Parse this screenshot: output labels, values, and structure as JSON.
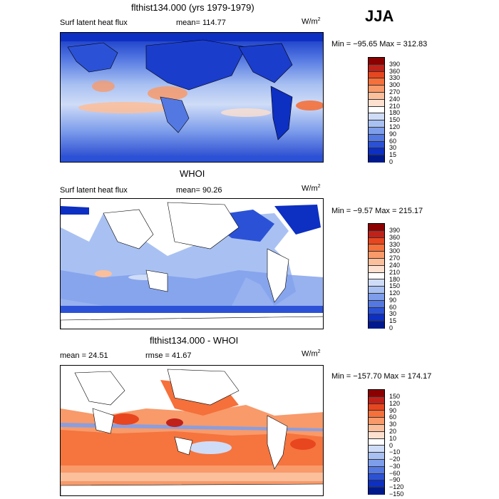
{
  "season": "JJA",
  "units": "W/m",
  "units_exp": "2",
  "panels": [
    {
      "title": "flthist134.000 (yrs 1979-1979)",
      "left_label": "Surf latent heat flux",
      "stat_label": "mean= 114.77",
      "minmax": "Min = −95.65 Max = 312.83",
      "levels": [
        "390",
        "360",
        "330",
        "300",
        "270",
        "240",
        "210",
        "180",
        "150",
        "120",
        "90",
        "60",
        "30",
        "15",
        "0"
      ],
      "colors": [
        "#8b0000",
        "#c0221a",
        "#e8461f",
        "#f5703a",
        "#f89a6a",
        "#fbbf9c",
        "#fde0cf",
        "#ffffff",
        "#cfdcf7",
        "#a9c1f2",
        "#7e9eeb",
        "#5478e2",
        "#2b52d6",
        "#0d2fc2",
        "#001a8c"
      ]
    },
    {
      "title": "WHOI",
      "left_label": "Surf latent heat flux",
      "stat_label": "mean=  90.26",
      "minmax": "Min =  −9.57 Max = 215.17",
      "levels": [
        "390",
        "360",
        "330",
        "300",
        "270",
        "240",
        "210",
        "180",
        "150",
        "120",
        "90",
        "60",
        "30",
        "15",
        "0"
      ],
      "colors": [
        "#8b0000",
        "#c0221a",
        "#e8461f",
        "#f5703a",
        "#f89a6a",
        "#fbbf9c",
        "#fde0cf",
        "#ffffff",
        "#cfdcf7",
        "#a9c1f2",
        "#7e9eeb",
        "#5478e2",
        "#2b52d6",
        "#0d2fc2",
        "#001a8c"
      ]
    },
    {
      "title": "flthist134.000 - WHOI",
      "left_label": "mean =  24.51",
      "stat_label": "rmse =  41.67",
      "minmax": "Min = −157.70 Max = 174.17",
      "levels": [
        "150",
        "120",
        "90",
        "60",
        "30",
        "20",
        "10",
        "0",
        "−10",
        "−20",
        "−30",
        "−60",
        "−90",
        "−120",
        "−150"
      ],
      "colors": [
        "#8b0000",
        "#c0221a",
        "#e8461f",
        "#f5703a",
        "#f89a6a",
        "#fbbf9c",
        "#fde0cf",
        "#ffffff",
        "#cfdcf7",
        "#a9c1f2",
        "#7e9eeb",
        "#5478e2",
        "#2b52d6",
        "#0d2fc2",
        "#001a8c"
      ]
    }
  ]
}
